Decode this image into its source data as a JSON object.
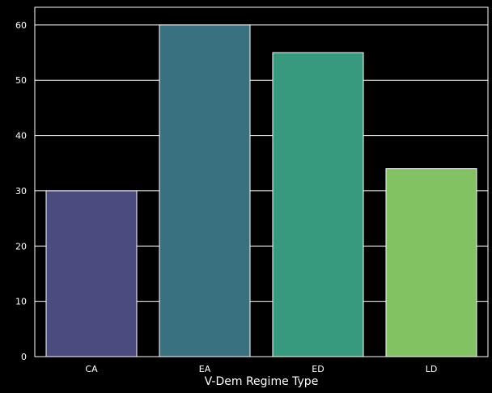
{
  "chart_data": {
    "type": "bar",
    "title": "",
    "xlabel": "V-Dem Regime Type",
    "ylabel": "",
    "categories": [
      "CA",
      "EA",
      "ED",
      "LD"
    ],
    "values": [
      30,
      60,
      55,
      34
    ],
    "colors": [
      "#4c4b7f",
      "#3a7180",
      "#379a7e",
      "#82c263"
    ],
    "yticks": [
      "0",
      "10",
      "20",
      "30",
      "40",
      "50",
      "60"
    ],
    "ylim": [
      0,
      63.2
    ],
    "grid": true,
    "background": "#000000",
    "bar_edge_color": "#ffffff",
    "grid_color": "#ffffff",
    "legend": "none"
  }
}
